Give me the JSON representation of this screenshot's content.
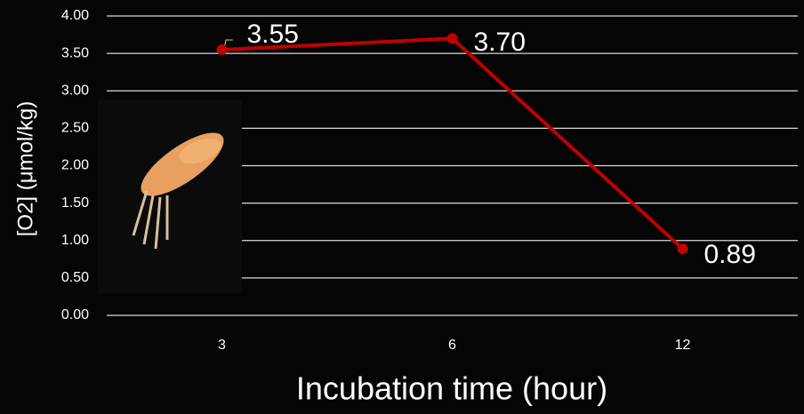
{
  "chart_data": {
    "type": "line",
    "y_label": "[O2] (μmol/kg)",
    "x_label": "Incubation time (hour)",
    "categories": [
      "3",
      "6",
      "12"
    ],
    "values": [
      3.55,
      3.7,
      0.89
    ],
    "value_labels": [
      "3.55",
      "3.70",
      "0.89"
    ],
    "color": "#c00000",
    "ylim": [
      0,
      4
    ],
    "yticks": [
      {
        "value": 0,
        "label": "0.00"
      },
      {
        "value": 0.5,
        "label": "0.50"
      },
      {
        "value": 1,
        "label": "1.00"
      },
      {
        "value": 1.5,
        "label": "1.50"
      },
      {
        "value": 2,
        "label": "2.00"
      },
      {
        "value": 2.5,
        "label": "2.50"
      },
      {
        "value": 3,
        "label": "3.00"
      },
      {
        "value": 3.5,
        "label": "3.50"
      },
      {
        "value": 4,
        "label": "4.00"
      }
    ],
    "grid": true
  }
}
